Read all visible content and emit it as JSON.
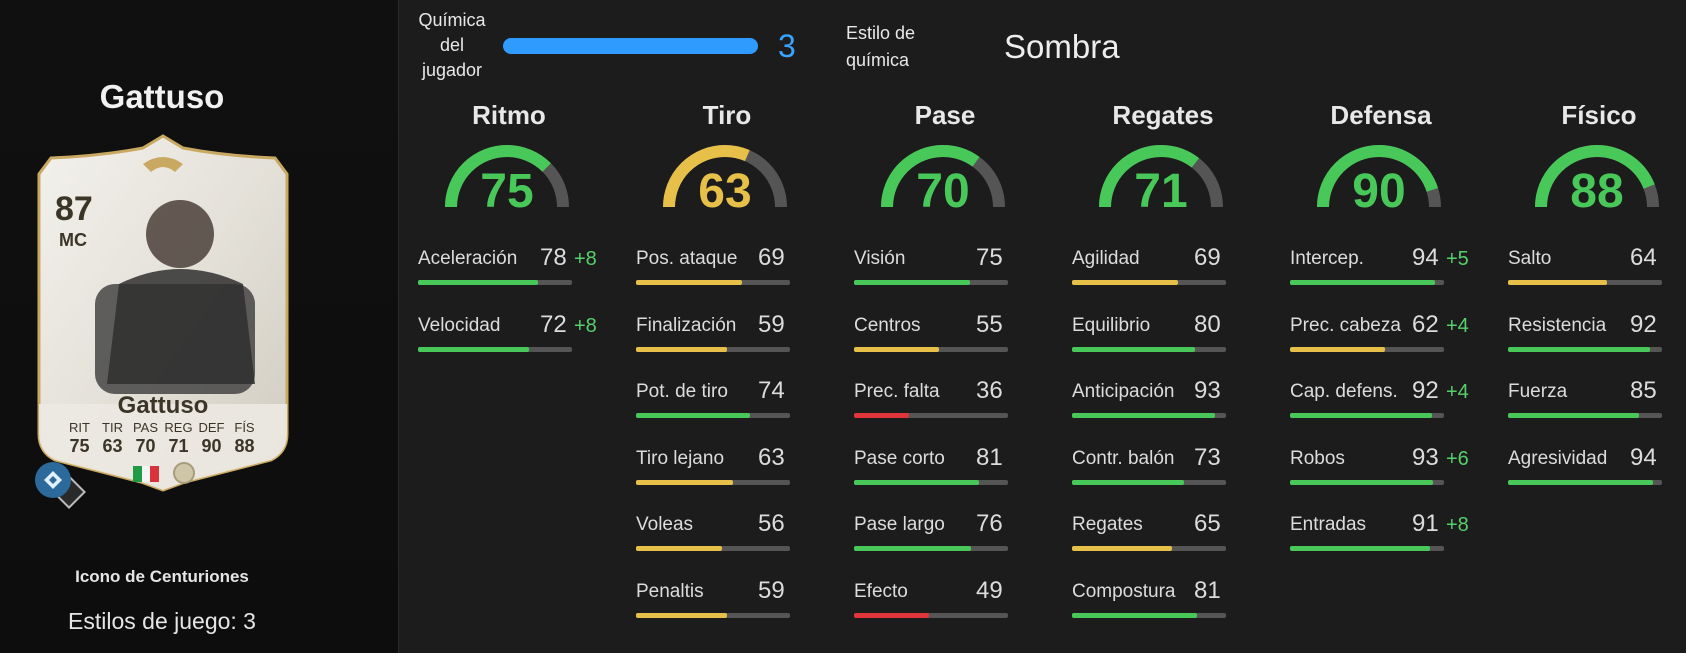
{
  "player": {
    "name": "Gattuso",
    "card": {
      "rating": "87",
      "position": "MC",
      "name": "Gattuso",
      "stats": [
        {
          "label": "RIT",
          "value": "75"
        },
        {
          "label": "TIR",
          "value": "63"
        },
        {
          "label": "PAS",
          "value": "70"
        },
        {
          "label": "REG",
          "value": "71"
        },
        {
          "label": "DEF",
          "value": "90"
        },
        {
          "label": "FÍS",
          "value": "88"
        }
      ]
    },
    "subtitle": "Icono de Centuriones",
    "playstyles": "Estilos de juego: 3"
  },
  "chemistry": {
    "label": "Química del jugador",
    "value": "3",
    "max": 3,
    "style_label": "Estilo de química",
    "style_value": "Sombra"
  },
  "colors": {
    "green": "#49c85a",
    "yellow": "#e6c049",
    "red": "#e0353a",
    "blue": "#2f9bff",
    "boost": "#56d06b"
  },
  "columns": [
    {
      "title": "Ritmo",
      "value": 75,
      "stats": [
        {
          "name": "Aceleración",
          "value": 78,
          "boost": "+8"
        },
        {
          "name": "Velocidad",
          "value": 72,
          "boost": "+8"
        }
      ]
    },
    {
      "title": "Tiro",
      "value": 63,
      "stats": [
        {
          "name": "Pos. ataque",
          "value": 69,
          "boost": ""
        },
        {
          "name": "Finalización",
          "value": 59,
          "boost": ""
        },
        {
          "name": "Pot. de tiro",
          "value": 74,
          "boost": ""
        },
        {
          "name": "Tiro lejano",
          "value": 63,
          "boost": ""
        },
        {
          "name": "Voleas",
          "value": 56,
          "boost": ""
        },
        {
          "name": "Penaltis",
          "value": 59,
          "boost": ""
        }
      ]
    },
    {
      "title": "Pase",
      "value": 70,
      "stats": [
        {
          "name": "Visión",
          "value": 75,
          "boost": ""
        },
        {
          "name": "Centros",
          "value": 55,
          "boost": ""
        },
        {
          "name": "Prec. falta",
          "value": 36,
          "boost": ""
        },
        {
          "name": "Pase corto",
          "value": 81,
          "boost": ""
        },
        {
          "name": "Pase largo",
          "value": 76,
          "boost": ""
        },
        {
          "name": "Efecto",
          "value": 49,
          "boost": ""
        }
      ]
    },
    {
      "title": "Regates",
      "value": 71,
      "stats": [
        {
          "name": "Agilidad",
          "value": 69,
          "boost": ""
        },
        {
          "name": "Equilibrio",
          "value": 80,
          "boost": ""
        },
        {
          "name": "Anticipación",
          "value": 93,
          "boost": ""
        },
        {
          "name": "Contr. balón",
          "value": 73,
          "boost": ""
        },
        {
          "name": "Regates",
          "value": 65,
          "boost": ""
        },
        {
          "name": "Compostura",
          "value": 81,
          "boost": ""
        }
      ]
    },
    {
      "title": "Defensa",
      "value": 90,
      "stats": [
        {
          "name": "Intercep.",
          "value": 94,
          "boost": "+5"
        },
        {
          "name": "Prec. cabeza",
          "value": 62,
          "boost": "+4"
        },
        {
          "name": "Cap. defens.",
          "value": 92,
          "boost": "+4"
        },
        {
          "name": "Robos",
          "value": 93,
          "boost": "+6"
        },
        {
          "name": "Entradas",
          "value": 91,
          "boost": "+8"
        }
      ]
    },
    {
      "title": "Físico",
      "value": 88,
      "stats": [
        {
          "name": "Salto",
          "value": 64,
          "boost": ""
        },
        {
          "name": "Resistencia",
          "value": 92,
          "boost": ""
        },
        {
          "name": "Fuerza",
          "value": 85,
          "boost": ""
        },
        {
          "name": "Agresividad",
          "value": 94,
          "boost": ""
        }
      ]
    }
  ]
}
